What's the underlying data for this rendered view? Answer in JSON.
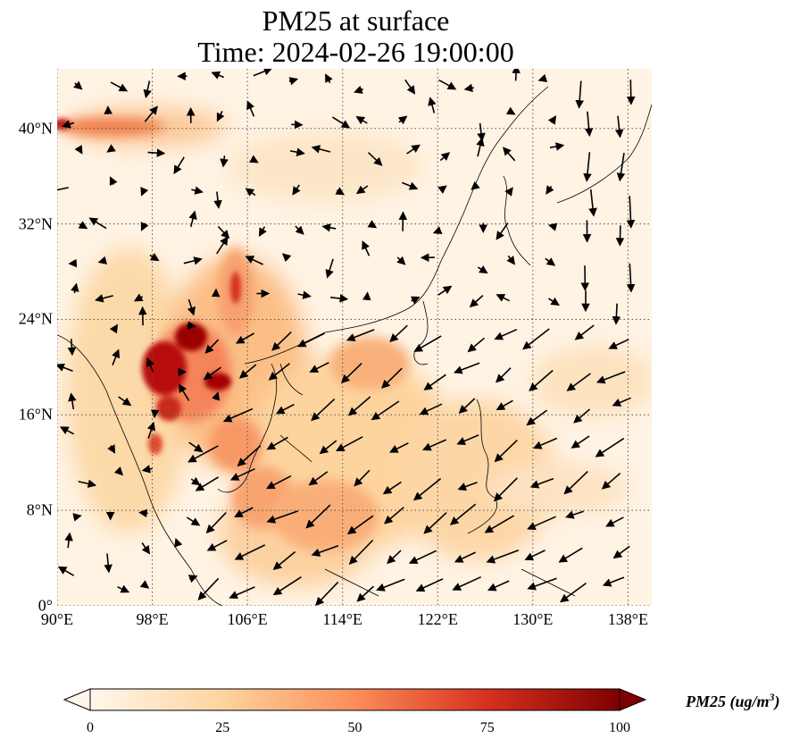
{
  "title": {
    "line1": "PM25 at surface",
    "line2": "Time: 2024-02-26 19:00:00"
  },
  "map": {
    "lon_range": [
      90,
      140
    ],
    "lat_range": [
      0,
      45
    ],
    "x_ticks": [
      "90°E",
      "98°E",
      "106°E",
      "114°E",
      "122°E",
      "130°E",
      "138°E"
    ],
    "y_ticks": [
      "0°",
      "8°N",
      "16°N",
      "24°N",
      "32°N",
      "40°N"
    ],
    "x_tick_values": [
      90,
      98,
      106,
      114,
      122,
      130,
      138
    ],
    "y_tick_values": [
      0,
      8,
      16,
      24,
      32,
      40
    ],
    "gridlines": "dotted",
    "field": "PM25",
    "overlay": "wind vectors"
  },
  "colorbar": {
    "label": "PM25 (ug/m",
    "label_sup": "3",
    "label_close": ")",
    "ticks": [
      "0",
      "25",
      "50",
      "75",
      "100"
    ],
    "tick_values": [
      0,
      25,
      50,
      75,
      100
    ],
    "range": [
      0,
      100
    ],
    "extend": "both",
    "colormap": "OrRd",
    "colors": [
      "#fff7ec",
      "#fdd49e",
      "#fc8d59",
      "#d7301f",
      "#7f0000"
    ]
  }
}
